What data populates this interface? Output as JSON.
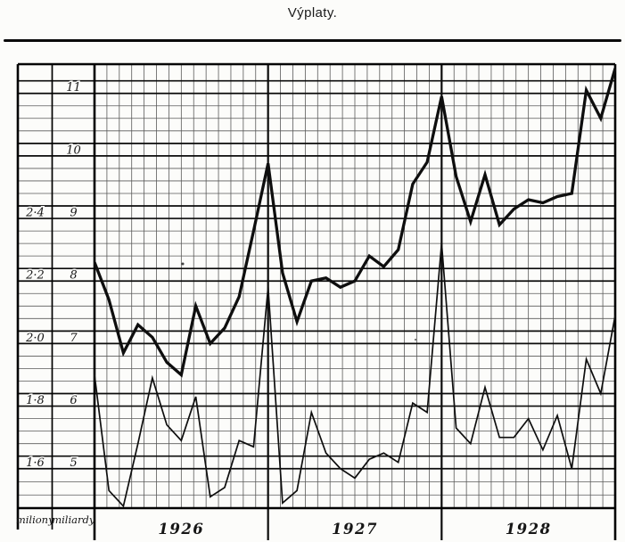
{
  "title": "Výplaty.",
  "footer_labels": {
    "col1": "miliony",
    "col2": "miliardy"
  },
  "chart_data": {
    "type": "line",
    "title": "Výplaty.",
    "x_axis": {
      "year_labels": [
        "1926",
        "1927",
        "1928"
      ],
      "points_per_year": 12,
      "note": "37 monthly points; year-end months spike (points 12, 24, 36 sit on the year boundary lines)"
    },
    "y_axis_left": {
      "unit_label": "miliony",
      "tick_labels": [
        "2·4",
        "2·2",
        "2·0",
        "1·8",
        "1·6"
      ],
      "tick_values": [
        2.4,
        2.2,
        2.0,
        1.8,
        1.6
      ]
    },
    "y_axis_inner": {
      "unit_label": "miliardy",
      "tick_labels": [
        "11",
        "10",
        "9",
        "8",
        "7",
        "6",
        "5"
      ],
      "tick_values": [
        11,
        10,
        9,
        8,
        7,
        6,
        5
      ]
    },
    "grid": true,
    "legend": "none",
    "ink_color": "#111111",
    "series": [
      {
        "name": "výplaty (thick line, miliardy scale)",
        "scale": "miliardy",
        "stroke": "thick",
        "ylim": [
          5,
          11.5
        ],
        "values": [
          8.2,
          7.6,
          6.75,
          7.2,
          7.0,
          6.6,
          6.4,
          7.5,
          6.9,
          7.15,
          7.65,
          8.7,
          9.78,
          8.03,
          7.25,
          7.9,
          7.95,
          7.8,
          7.9,
          8.3,
          8.13,
          8.4,
          9.45,
          9.8,
          10.85,
          9.57,
          8.85,
          9.6,
          8.8,
          9.05,
          9.2,
          9.15,
          9.25,
          9.3,
          10.95,
          10.5,
          11.3
        ]
      },
      {
        "name": "výplaty (thin line, miliony scale)",
        "scale": "miliony",
        "stroke": "thin",
        "ylim": [
          1.4,
          2.45
        ],
        "values": [
          1.88,
          1.51,
          1.46,
          1.66,
          1.87,
          1.72,
          1.67,
          1.81,
          1.49,
          1.52,
          1.67,
          1.65,
          2.16,
          1.47,
          1.51,
          1.76,
          1.63,
          1.58,
          1.55,
          1.61,
          1.63,
          1.6,
          1.79,
          1.76,
          2.3,
          1.71,
          1.66,
          1.84,
          1.68,
          1.68,
          1.74,
          1.64,
          1.75,
          1.58,
          1.93,
          1.82,
          2.07
        ]
      }
    ]
  }
}
